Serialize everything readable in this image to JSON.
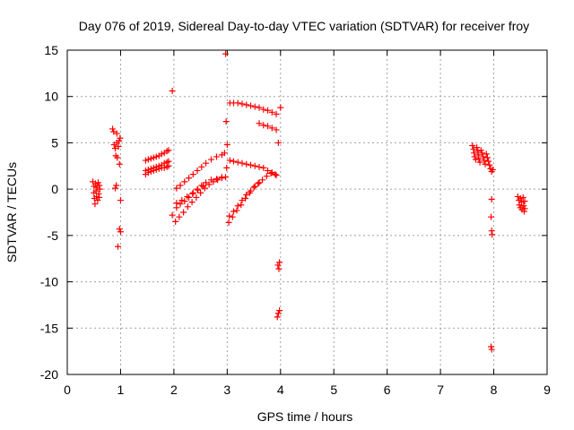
{
  "chart_data": {
    "type": "scatter",
    "title": "Day 076 of 2019, Sidereal Day-to-day VTEC variation (SDTVAR) for receiver froy",
    "xlabel": "GPS time / hours",
    "ylabel": "SDTVAR / TECUs",
    "xlim": [
      0,
      9
    ],
    "ylim": [
      -20,
      15
    ],
    "xticks": [
      "0",
      "1",
      "2",
      "3",
      "4",
      "5",
      "6",
      "7",
      "8",
      "9"
    ],
    "yticks": [
      "15",
      "10",
      "5",
      "0",
      "-5",
      "-10",
      "-15",
      "-20"
    ],
    "grid": true,
    "marker": "+",
    "marker_color": "#ff0000",
    "series": [
      {
        "name": "SDTVAR",
        "points": [
          [
            0.48,
            0.8
          ],
          [
            0.5,
            0.3
          ],
          [
            0.5,
            -0.4
          ],
          [
            0.51,
            -1.0
          ],
          [
            0.52,
            -1.6
          ],
          [
            0.53,
            0.6
          ],
          [
            0.54,
            -0.2
          ],
          [
            0.55,
            -0.8
          ],
          [
            0.56,
            0.2
          ],
          [
            0.57,
            -1.2
          ],
          [
            0.58,
            0.7
          ],
          [
            0.59,
            -0.5
          ],
          [
            0.6,
            0.4
          ],
          [
            0.6,
            -0.9
          ],
          [
            0.61,
            0.0
          ],
          [
            0.85,
            6.5
          ],
          [
            0.87,
            6.2
          ],
          [
            0.88,
            4.8
          ],
          [
            0.9,
            4.4
          ],
          [
            0.9,
            0.1
          ],
          [
            0.91,
            3.6
          ],
          [
            0.92,
            0.4
          ],
          [
            0.93,
            6.0
          ],
          [
            0.93,
            5.0
          ],
          [
            0.94,
            3.4
          ],
          [
            0.95,
            -6.2
          ],
          [
            0.96,
            4.6
          ],
          [
            0.97,
            5.2
          ],
          [
            0.98,
            2.7
          ],
          [
            0.98,
            -4.3
          ],
          [
            0.99,
            5.5
          ],
          [
            1.0,
            -1.2
          ],
          [
            1.0,
            -4.6
          ],
          [
            1.47,
            3.1
          ],
          [
            1.52,
            3.2
          ],
          [
            1.57,
            3.3
          ],
          [
            1.62,
            3.4
          ],
          [
            1.67,
            3.5
          ],
          [
            1.72,
            3.6
          ],
          [
            1.77,
            3.8
          ],
          [
            1.82,
            3.9
          ],
          [
            1.87,
            4.1
          ],
          [
            1.9,
            4.2
          ],
          [
            1.47,
            2.0
          ],
          [
            1.52,
            2.1
          ],
          [
            1.57,
            2.2
          ],
          [
            1.62,
            2.3
          ],
          [
            1.67,
            2.4
          ],
          [
            1.72,
            2.5
          ],
          [
            1.77,
            2.6
          ],
          [
            1.82,
            2.8
          ],
          [
            1.87,
            2.9
          ],
          [
            1.9,
            3.0
          ],
          [
            1.47,
            1.6
          ],
          [
            1.52,
            1.8
          ],
          [
            1.57,
            1.9
          ],
          [
            1.62,
            2.0
          ],
          [
            1.67,
            2.1
          ],
          [
            1.72,
            2.2
          ],
          [
            1.77,
            2.3
          ],
          [
            1.82,
            2.3
          ],
          [
            1.87,
            2.4
          ],
          [
            1.9,
            2.5
          ],
          [
            1.97,
            10.6
          ],
          [
            1.97,
            -2.8
          ],
          [
            2.05,
            0.1
          ],
          [
            2.12,
            0.4
          ],
          [
            2.2,
            0.8
          ],
          [
            2.28,
            1.2
          ],
          [
            2.36,
            1.6
          ],
          [
            2.44,
            2.0
          ],
          [
            2.52,
            2.4
          ],
          [
            2.6,
            2.8
          ],
          [
            2.7,
            3.2
          ],
          [
            2.8,
            3.5
          ],
          [
            2.9,
            3.7
          ],
          [
            2.95,
            3.9
          ],
          [
            2.03,
            -3.5
          ],
          [
            2.1,
            -3.0
          ],
          [
            2.18,
            -2.5
          ],
          [
            2.26,
            -1.9
          ],
          [
            2.34,
            -1.4
          ],
          [
            2.42,
            -0.9
          ],
          [
            2.5,
            -0.4
          ],
          [
            2.58,
            0.1
          ],
          [
            2.66,
            0.5
          ],
          [
            2.74,
            0.8
          ],
          [
            2.82,
            1.0
          ],
          [
            2.9,
            1.2
          ],
          [
            2.97,
            1.3
          ],
          [
            2.05,
            -2.0
          ],
          [
            2.12,
            -1.6
          ],
          [
            2.2,
            -1.3
          ],
          [
            2.28,
            -0.9
          ],
          [
            2.36,
            -0.4
          ],
          [
            2.44,
            0.0
          ],
          [
            2.52,
            0.4
          ],
          [
            2.6,
            0.7
          ],
          [
            2.7,
            1.0
          ],
          [
            2.8,
            1.1
          ],
          [
            2.9,
            1.3
          ],
          [
            2.05,
            -1.5
          ],
          [
            2.15,
            -1.2
          ],
          [
            2.25,
            -0.8
          ],
          [
            2.35,
            -0.5
          ],
          [
            2.45,
            -0.1
          ],
          [
            2.55,
            0.3
          ],
          [
            2.97,
            14.6
          ],
          [
            2.98,
            7.3
          ],
          [
            2.99,
            2.3
          ],
          [
            3.0,
            4.8
          ],
          [
            3.05,
            9.3
          ],
          [
            3.12,
            9.3
          ],
          [
            3.2,
            9.3
          ],
          [
            3.28,
            9.2
          ],
          [
            3.36,
            9.1
          ],
          [
            3.44,
            9.0
          ],
          [
            3.52,
            8.9
          ],
          [
            3.6,
            8.8
          ],
          [
            3.68,
            8.6
          ],
          [
            3.76,
            8.5
          ],
          [
            3.84,
            8.3
          ],
          [
            3.92,
            8.1
          ],
          [
            4.0,
            8.8
          ],
          [
            3.6,
            7.1
          ],
          [
            3.68,
            6.9
          ],
          [
            3.76,
            6.8
          ],
          [
            3.84,
            6.6
          ],
          [
            3.92,
            6.4
          ],
          [
            3.96,
            5.0
          ],
          [
            3.05,
            3.1
          ],
          [
            3.12,
            3.0
          ],
          [
            3.2,
            2.9
          ],
          [
            3.28,
            2.8
          ],
          [
            3.36,
            2.7
          ],
          [
            3.44,
            2.6
          ],
          [
            3.52,
            2.5
          ],
          [
            3.6,
            2.4
          ],
          [
            3.68,
            2.3
          ],
          [
            3.76,
            2.0
          ],
          [
            3.84,
            1.8
          ],
          [
            3.92,
            1.5
          ],
          [
            3.03,
            -3.6
          ],
          [
            3.1,
            -3.0
          ],
          [
            3.18,
            -2.3
          ],
          [
            3.26,
            -1.7
          ],
          [
            3.34,
            -1.0
          ],
          [
            3.42,
            -0.4
          ],
          [
            3.5,
            0.2
          ],
          [
            3.58,
            0.6
          ],
          [
            3.66,
            1.0
          ],
          [
            3.74,
            1.4
          ],
          [
            3.82,
            1.7
          ],
          [
            3.9,
            1.6
          ],
          [
            3.04,
            -2.9
          ],
          [
            3.12,
            -2.4
          ],
          [
            3.2,
            -1.8
          ],
          [
            3.28,
            -1.2
          ],
          [
            3.36,
            -0.6
          ],
          [
            3.44,
            -0.2
          ],
          [
            3.52,
            0.3
          ],
          [
            3.6,
            0.7
          ],
          [
            3.95,
            -8.2
          ],
          [
            3.97,
            -8.6
          ],
          [
            3.98,
            -7.9
          ],
          [
            3.94,
            -13.8
          ],
          [
            3.96,
            -13.4
          ],
          [
            3.98,
            -13.1
          ],
          [
            7.6,
            4.7
          ],
          [
            7.62,
            4.3
          ],
          [
            7.63,
            3.9
          ],
          [
            7.64,
            3.5
          ],
          [
            7.66,
            3.2
          ],
          [
            7.68,
            4.5
          ],
          [
            7.7,
            4.1
          ],
          [
            7.71,
            3.7
          ],
          [
            7.72,
            3.3
          ],
          [
            7.74,
            2.9
          ],
          [
            7.76,
            4.2
          ],
          [
            7.78,
            3.9
          ],
          [
            7.8,
            3.5
          ],
          [
            7.82,
            3.1
          ],
          [
            7.84,
            2.7
          ],
          [
            7.86,
            3.8
          ],
          [
            7.88,
            3.4
          ],
          [
            7.9,
            3.0
          ],
          [
            7.92,
            2.6
          ],
          [
            7.94,
            2.2
          ],
          [
            7.96,
            1.9
          ],
          [
            7.98,
            2.1
          ],
          [
            7.96,
            -1.1
          ],
          [
            7.95,
            -3.0
          ],
          [
            7.96,
            -4.5
          ],
          [
            7.97,
            -4.9
          ],
          [
            7.95,
            -17.0
          ],
          [
            7.96,
            -17.3
          ],
          [
            8.45,
            -0.8
          ],
          [
            8.47,
            -1.2
          ],
          [
            8.48,
            -1.7
          ],
          [
            8.5,
            -2.0
          ],
          [
            8.5,
            -1.0
          ],
          [
            8.52,
            -1.4
          ],
          [
            8.53,
            -2.2
          ],
          [
            8.55,
            -0.9
          ],
          [
            8.56,
            -1.8
          ],
          [
            8.57,
            -2.4
          ],
          [
            8.58,
            -1.3
          ],
          [
            8.58,
            -2.1
          ]
        ]
      }
    ]
  }
}
